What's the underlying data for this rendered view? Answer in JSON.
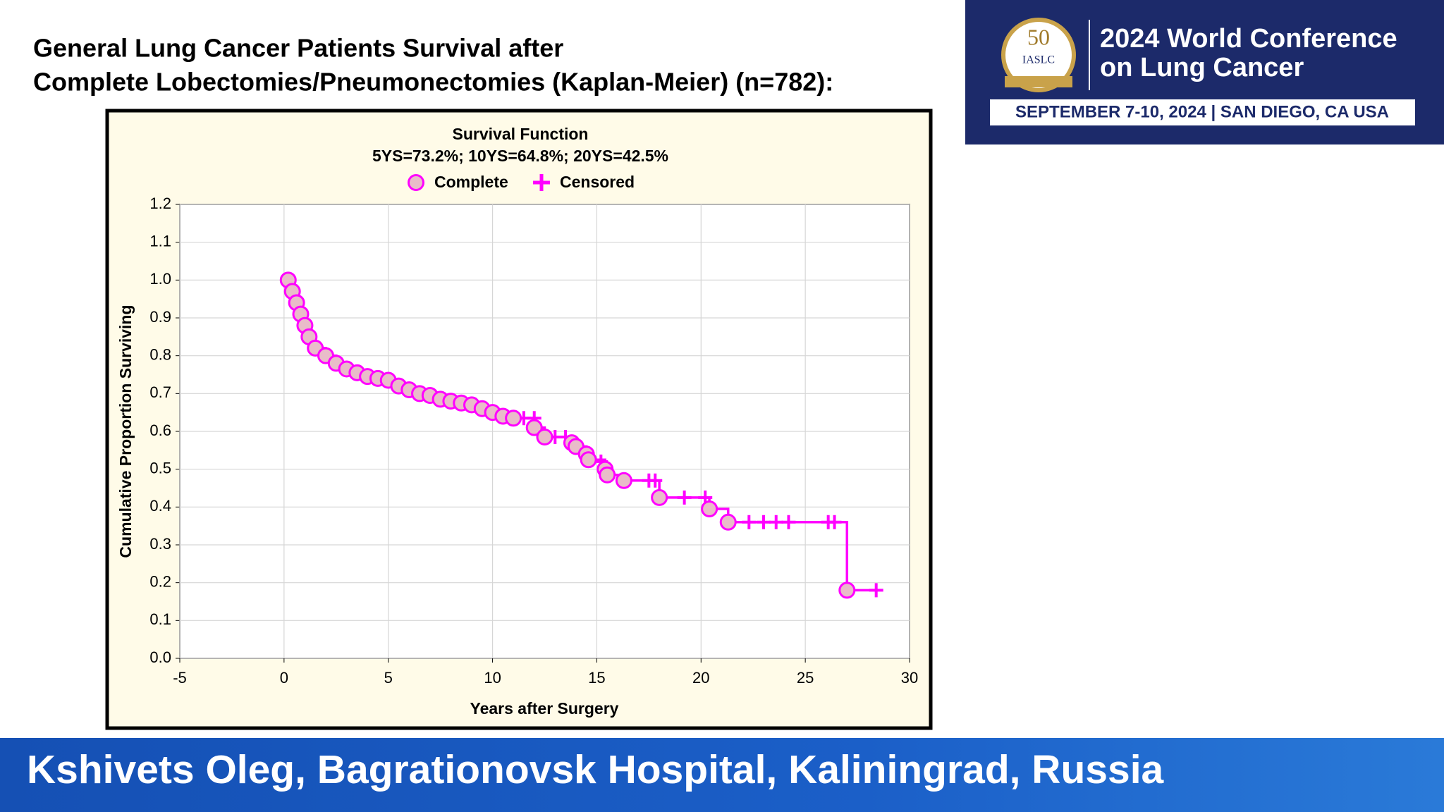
{
  "header": {
    "title_lines": [
      "General Lung Cancer Patients Survival  after",
      "Complete Lobectomies/Pneumonectomies (Kaplan-Meier)  (n=782):"
    ]
  },
  "logo": {
    "number": "50",
    "org": "IASLC",
    "lines": [
      "2024 World Conference",
      "on Lung Cancer"
    ],
    "dates": "SEPTEMBER 7-10, 2024 | SAN DIEGO, CA USA"
  },
  "footer": {
    "text": "Kshivets Oleg, Bagrationovsk Hospital, Kaliningrad, Russia"
  },
  "chart_data": {
    "type": "kaplan-meier",
    "title": "Survival Function",
    "subtitle": "5YS=73.2%; 10YS=64.8%; 20YS=42.5%",
    "x_label": "Years after Surgery",
    "y_label": "Cumulative Proportion Surviving",
    "xlim": [
      -5,
      30
    ],
    "xticks": [
      -5,
      0,
      5,
      10,
      15,
      20,
      25,
      30
    ],
    "ylim": [
      0,
      1.2
    ],
    "yticks": [
      {
        "value": 0,
        "label": "0.0"
      },
      0.1,
      0.2,
      0.3,
      0.4,
      0.5,
      0.6,
      0.7,
      0.8,
      0.9,
      {
        "value": 1,
        "label": "1.0"
      },
      1.1,
      1.2
    ],
    "grid": true,
    "series": [
      {
        "name": "Complete",
        "color": "#ff00ff",
        "x": [
          0.2,
          0.4,
          0.6,
          0.8,
          1.0,
          1.2,
          1.5,
          2.0,
          2.5,
          3.0,
          3.5,
          4.0,
          4.5,
          5.0,
          5.5,
          6.0,
          6.5,
          7.0,
          7.5,
          8.0,
          8.5,
          9.0,
          9.5,
          10.0,
          10.5,
          11.0,
          12.0,
          12.5,
          13.8,
          14.0,
          14.5,
          14.6,
          15.4,
          15.5,
          16.3,
          18.0,
          20.4,
          21.3,
          27.0
        ],
        "values": [
          1.0,
          0.97,
          0.94,
          0.91,
          0.88,
          0.85,
          0.82,
          0.8,
          0.78,
          0.765,
          0.755,
          0.745,
          0.74,
          0.735,
          0.72,
          0.71,
          0.7,
          0.695,
          0.685,
          0.68,
          0.675,
          0.67,
          0.66,
          0.65,
          0.64,
          0.635,
          0.61,
          0.585,
          0.57,
          0.56,
          0.54,
          0.525,
          0.5,
          0.485,
          0.47,
          0.425,
          0.395,
          0.36,
          0.18
        ]
      },
      {
        "name": "Censored",
        "color": "#ff00ff",
        "x": [
          11.5,
          12.0,
          13.0,
          13.5,
          15.2,
          17.5,
          17.8,
          19.2,
          20.2,
          22.3,
          23.0,
          23.6,
          24.2,
          26.1,
          26.4,
          28.4
        ],
        "values": [
          0.635,
          0.635,
          0.585,
          0.585,
          0.52,
          0.47,
          0.47,
          0.425,
          0.425,
          0.36,
          0.36,
          0.36,
          0.36,
          0.36,
          0.36,
          0.18
        ]
      }
    ]
  }
}
